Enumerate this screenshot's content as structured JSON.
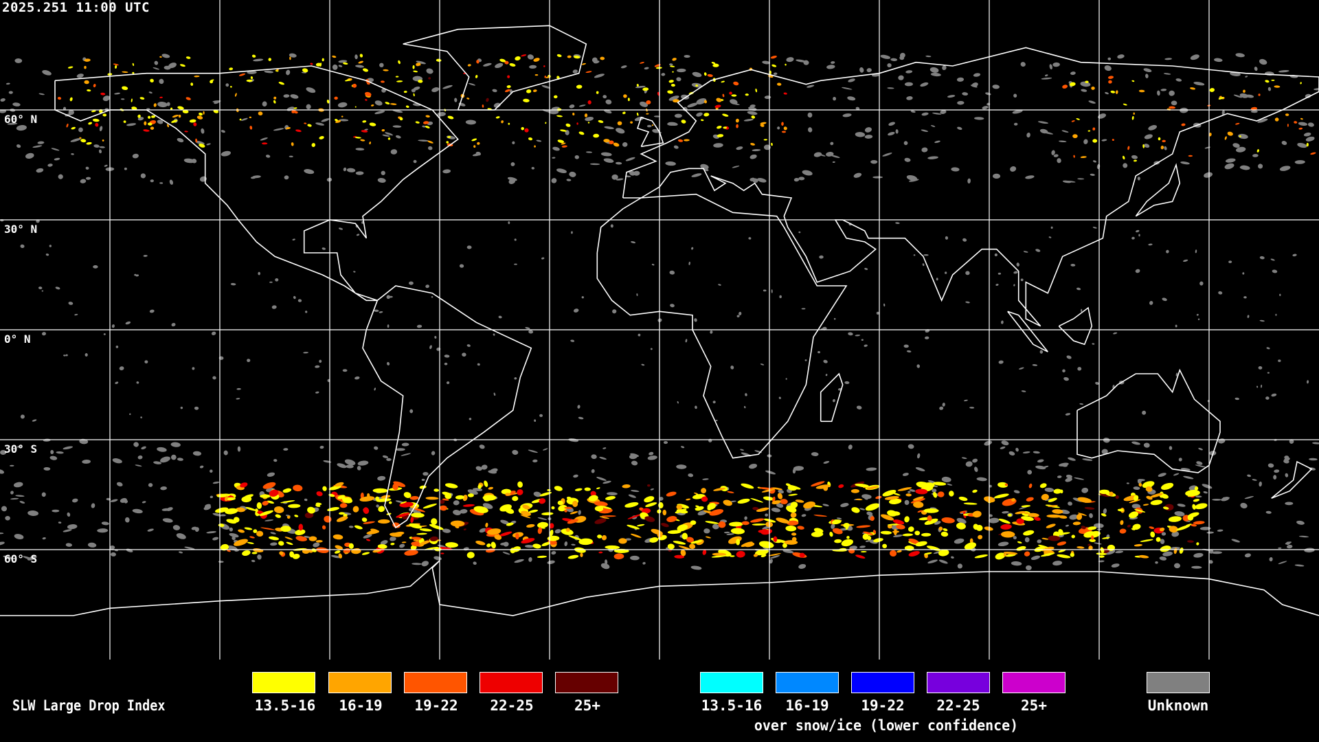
{
  "header": {
    "timestamp": "2025.251 11:00 UTC"
  },
  "map": {
    "lat_labels": [
      "60° N",
      "30° N",
      "0° N",
      "30° S",
      "60° S"
    ],
    "coastline_color": "#ffffff",
    "grid_color": "#ffffff",
    "graticule_spacing_deg": 30
  },
  "legend": {
    "title": "SLW Large Drop Index",
    "main_classes": [
      {
        "label": "13.5-16",
        "color": "#ffff00"
      },
      {
        "label": "16-19",
        "color": "#ffa500"
      },
      {
        "label": "19-22",
        "color": "#ff5500"
      },
      {
        "label": "22-25",
        "color": "#ee0000"
      },
      {
        "label": "25+",
        "color": "#660000"
      }
    ],
    "snow_classes": [
      {
        "label": "13.5-16",
        "color": "#00ffff"
      },
      {
        "label": "16-19",
        "color": "#0088ff"
      },
      {
        "label": "19-22",
        "color": "#0000ff"
      },
      {
        "label": "22-25",
        "color": "#7700dd"
      },
      {
        "label": "25+",
        "color": "#cc00cc"
      }
    ],
    "snow_caption": "over snow/ice (lower confidence)",
    "unknown": {
      "label": "Unknown",
      "color": "#808080"
    }
  }
}
